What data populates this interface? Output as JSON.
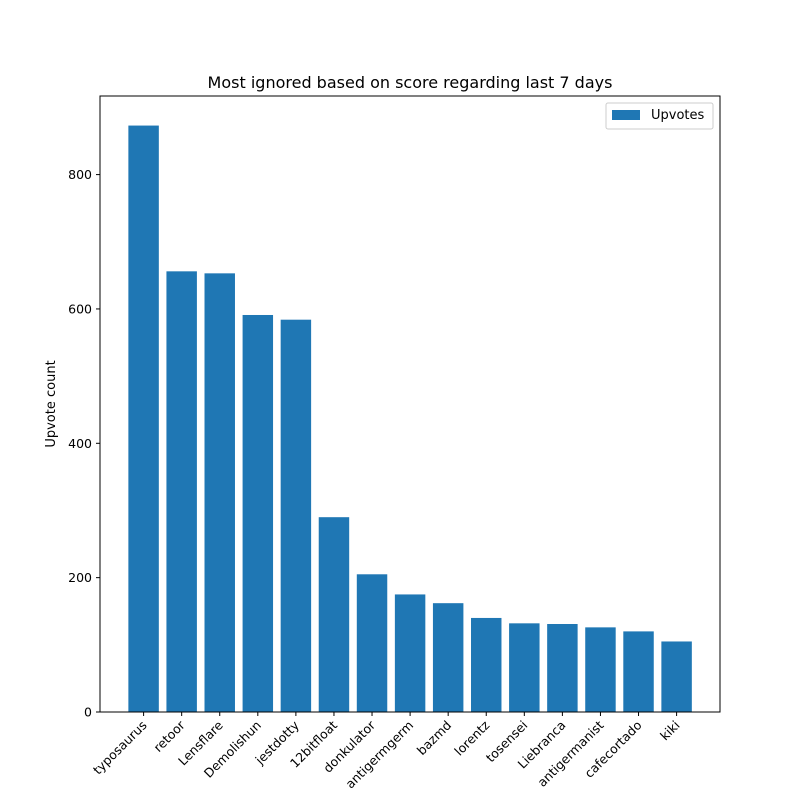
{
  "chart_data": {
    "type": "bar",
    "title": "Most ignored based on score regarding last 7 days",
    "xlabel": "",
    "ylabel": "Upvote count",
    "categories": [
      "typosaurus",
      "retoor",
      "Lensflare",
      "Demolishun",
      "jestdotty",
      "12bitfloat",
      "donkulator",
      "antigermgerm",
      "bazmd",
      "lorentz",
      "tosensei",
      "Liebranca",
      "antigermanist",
      "cafecortado",
      "kiki"
    ],
    "series": [
      {
        "name": "Upvotes",
        "values": [
          873,
          656,
          653,
          591,
          584,
          290,
          205,
          175,
          162,
          140,
          132,
          131,
          126,
          120,
          105
        ],
        "color": "#1f77b4"
      }
    ],
    "ylim": [
      0,
      917
    ],
    "yticks": [
      0,
      200,
      400,
      600,
      800
    ],
    "grid": false,
    "legend_position": "top-right",
    "xtick_rotation": -45
  }
}
